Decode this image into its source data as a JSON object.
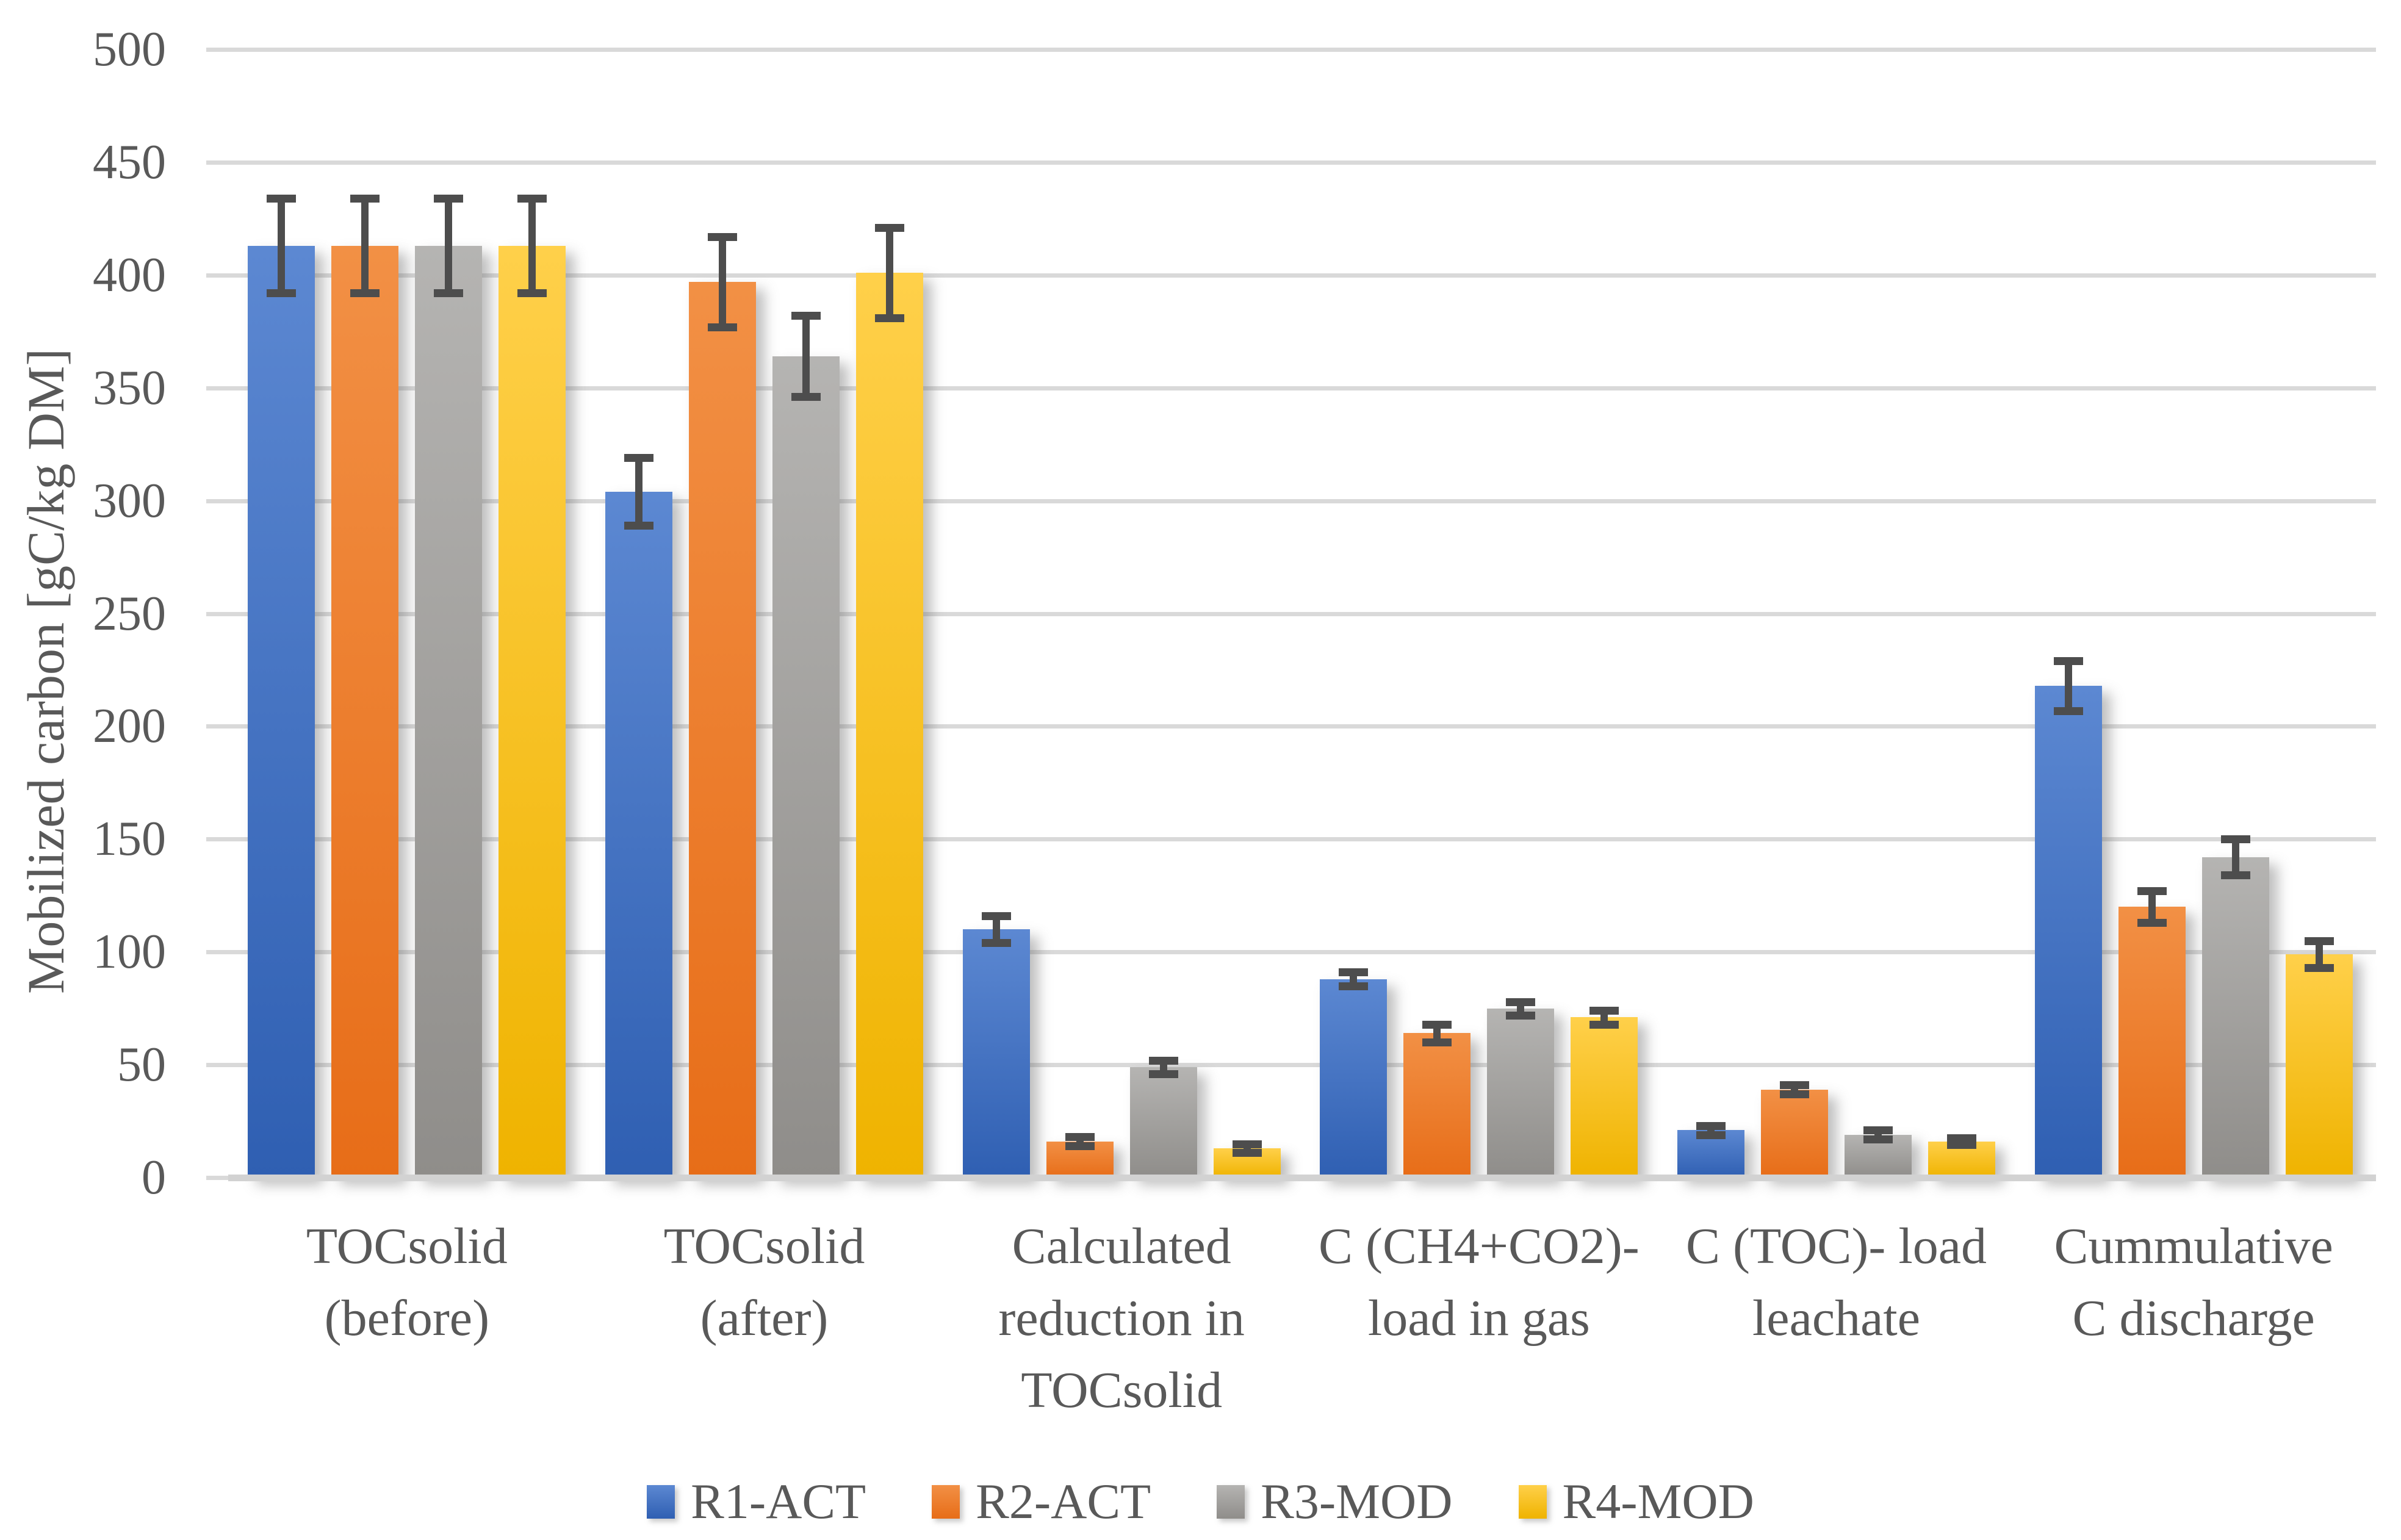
{
  "chart_data": {
    "type": "bar",
    "title": "",
    "xlabel": "",
    "ylabel": "Mobilized carbon [gC/kg DM]",
    "ylim": [
      0,
      500
    ],
    "ytick_step": 50,
    "yticks": [
      "0",
      "50",
      "100",
      "150",
      "200",
      "250",
      "300",
      "350",
      "400",
      "450",
      "500"
    ],
    "grid": true,
    "legend_position": "bottom",
    "error_bars": true,
    "categories": [
      "TOCsolid (before)",
      "TOCsolid (after)",
      "Calculated reduction in TOCsolid",
      "C (CH4+CO2)- load in gas",
      "C (TOC)- load leachate",
      "Cummulative C discharge"
    ],
    "category_lines": [
      [
        "TOCsolid",
        "(before)"
      ],
      [
        "TOCsolid",
        "(after)"
      ],
      [
        "Calculated",
        "reduction in",
        "TOCsolid"
      ],
      [
        "C (CH4+CO2)-",
        "load in gas"
      ],
      [
        "C (TOC)- load",
        "leachate"
      ],
      [
        "Cummulative",
        "C discharge"
      ]
    ],
    "series": [
      {
        "name": "R1-ACT",
        "color": "#4472C4",
        "values": [
          413,
          304,
          110,
          88,
          21,
          218
        ],
        "errors": [
          21,
          15,
          6,
          3,
          2,
          11
        ]
      },
      {
        "name": "R2-ACT",
        "color": "#ED7D31",
        "values": [
          413,
          397,
          16,
          64,
          39,
          120
        ],
        "errors": [
          21,
          20,
          2,
          4,
          2,
          7
        ]
      },
      {
        "name": "R3-MOD",
        "color": "#A6A6A6",
        "values": [
          413,
          364,
          49,
          75,
          19,
          142
        ],
        "errors": [
          21,
          18,
          3,
          3,
          2,
          8
        ]
      },
      {
        "name": "R4-MOD",
        "color": "#FFC000",
        "values": [
          413,
          401,
          13,
          71,
          16,
          99
        ],
        "errors": [
          21,
          20,
          2,
          3,
          1.5,
          6
        ]
      }
    ],
    "colors": {
      "text": "#595959",
      "gridline": "#d9d9d9",
      "error_bar": "#4d4d4d"
    }
  }
}
